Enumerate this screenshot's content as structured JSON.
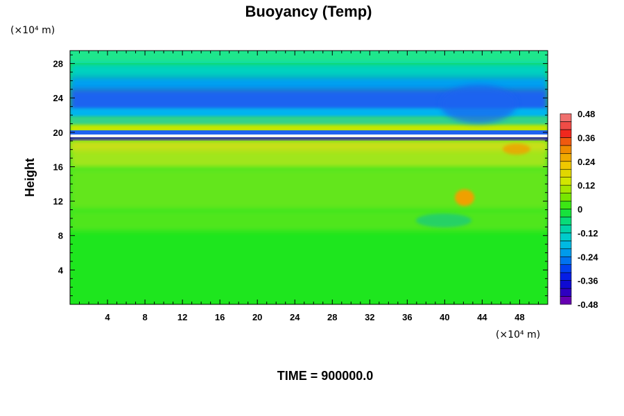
{
  "chart_data": {
    "type": "heatmap",
    "title": "Buoyancy (Temp)",
    "ylabel": "Height",
    "xlabel": "",
    "y_unit": "(×10⁴ m)",
    "x_unit": "(×10⁴ m)",
    "x_range": [
      0,
      51
    ],
    "y_range": [
      0,
      29.5
    ],
    "x_ticks": [
      "4",
      "8",
      "12",
      "16",
      "20",
      "24",
      "28",
      "32",
      "36",
      "40",
      "44",
      "48"
    ],
    "y_ticks": [
      "4",
      "8",
      "12",
      "16",
      "20",
      "24",
      "28"
    ],
    "colorbar": {
      "min": -0.48,
      "max": 0.48,
      "step": 0.04,
      "tick_labels": [
        "0.48",
        "0.36",
        "0.24",
        "0.12",
        "0",
        "-0.12",
        "-0.24",
        "-0.36",
        "-0.48"
      ]
    },
    "footer": "TIME = 900000.0",
    "colors": {
      "positive_peak": "#f07878",
      "high": "#f01e1e",
      "warm": "#f0d200",
      "neutral": "#32d232",
      "near_zero": "#1ee61e",
      "cool": "#00d2d2",
      "cold": "#0000f0",
      "min": "#8200aa"
    }
  }
}
